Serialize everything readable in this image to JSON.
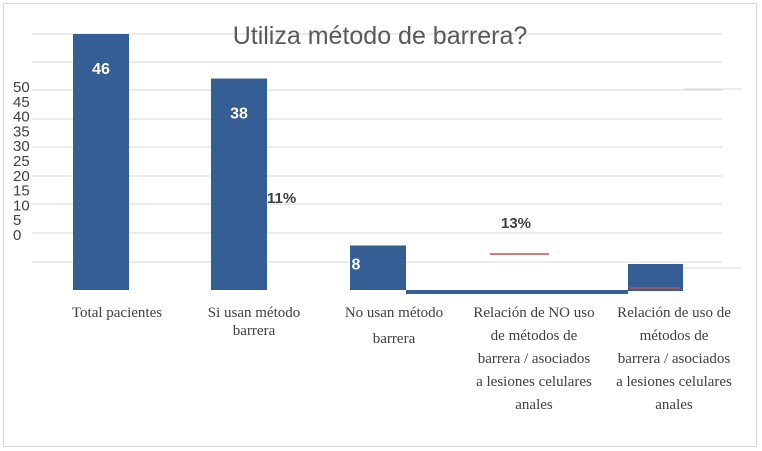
{
  "chart_data": {
    "type": "bar",
    "title": "Utiliza método de barrera?",
    "categories": [
      "Total pacientes",
      "Si usan método barrera",
      "No usan método barrera",
      "Relación de NO uso de métodos de barrera / asociados a lesiones celulares anales",
      "Relación de uso de métodos de barrera / asociados a lesiones celulares anales"
    ],
    "category_lines": [
      [
        "Total pacientes"
      ],
      [
        "Si usan método",
        "barrera"
      ],
      [
        "No usan método",
        "barrera"
      ],
      [
        "Relación de NO uso",
        "de métodos de",
        "barrera / asociados",
        "a lesiones celulares",
        "anales"
      ],
      [
        "Relación de uso de",
        "métodos de",
        "barrera / asociados",
        "a lesiones celulares",
        "anales"
      ]
    ],
    "values": [
      46,
      38,
      8,
      null,
      null
    ],
    "value_labels": [
      "46",
      "38",
      "8",
      "",
      ""
    ],
    "percent_labels": [
      "11%",
      "13%"
    ],
    "y_ticks": [
      "50",
      "45",
      "40",
      "35",
      "30",
      "25",
      "20",
      "15",
      "10",
      "5",
      "0"
    ],
    "ylim": [
      0,
      46
    ],
    "grid": true,
    "legend": "none",
    "bar_color": "#355e94",
    "accent_color": "#c0504d"
  }
}
